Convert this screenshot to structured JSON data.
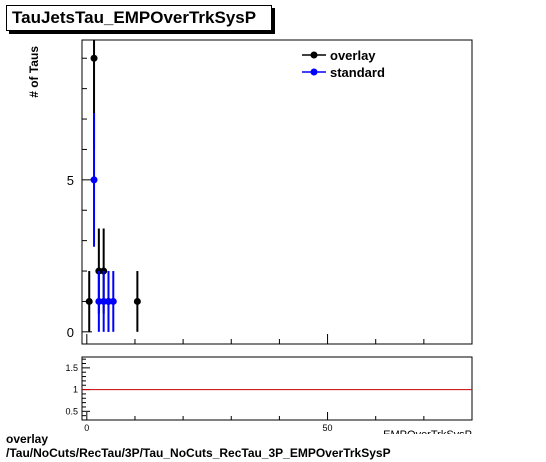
{
  "title": "TauJetsTau_EMPOverTrkSysP",
  "footer": {
    "line1": "overlay",
    "line2": "/Tau/NoCuts/RecTau/3P/Tau_NoCuts_RecTau_3P_EMPOverTrkSysP"
  },
  "chart_data": [
    {
      "type": "scatter",
      "ylabel": "# of Taus",
      "xlabel": "EMPOverTrkSysP",
      "xlim": [
        -1,
        80
      ],
      "ylim": [
        -0.4,
        9.6
      ],
      "yticks": [
        0,
        5
      ],
      "xticks": [
        0,
        50
      ],
      "legend": {
        "placement": "top-right"
      },
      "series": [
        {
          "name": "overlay",
          "color": "#000000",
          "points": [
            {
              "x": 0.5,
              "y": 1,
              "err": 1.0,
              "xerr": 0.5
            },
            {
              "x": 1.5,
              "y": 9,
              "err": 3.0,
              "xerr": 0.5
            },
            {
              "x": 2.5,
              "y": 2,
              "err": 1.4,
              "xerr": 0.5
            },
            {
              "x": 3.5,
              "y": 2,
              "err": 1.4,
              "xerr": 0.5
            },
            {
              "x": 4.5,
              "y": 1,
              "err": 1.0,
              "xerr": 0.5
            },
            {
              "x": 10.5,
              "y": 1,
              "err": 1.0,
              "xerr": 0.5
            }
          ]
        },
        {
          "name": "standard",
          "color": "#0000ff",
          "points": [
            {
              "x": 1.5,
              "y": 5,
              "err": 2.2,
              "xerr": 0.5
            },
            {
              "x": 2.5,
              "y": 1,
              "err": 1.0,
              "xerr": 0.5
            },
            {
              "x": 3.5,
              "y": 1,
              "err": 1.0,
              "xerr": 0.5
            },
            {
              "x": 4.5,
              "y": 1,
              "err": 1.0,
              "xerr": 0.5
            },
            {
              "x": 5.5,
              "y": 1,
              "err": 1.0,
              "xerr": 0.5
            }
          ]
        }
      ]
    },
    {
      "type": "line",
      "xlabel": "EMPOverTrkSysP",
      "xlim": [
        -1,
        80
      ],
      "ylim": [
        0.3,
        1.75
      ],
      "yticks": [
        0.5,
        1,
        1.5
      ],
      "xticks": [
        0,
        50
      ],
      "reference_line": {
        "y": 1,
        "color": "#cc0000"
      }
    }
  ]
}
